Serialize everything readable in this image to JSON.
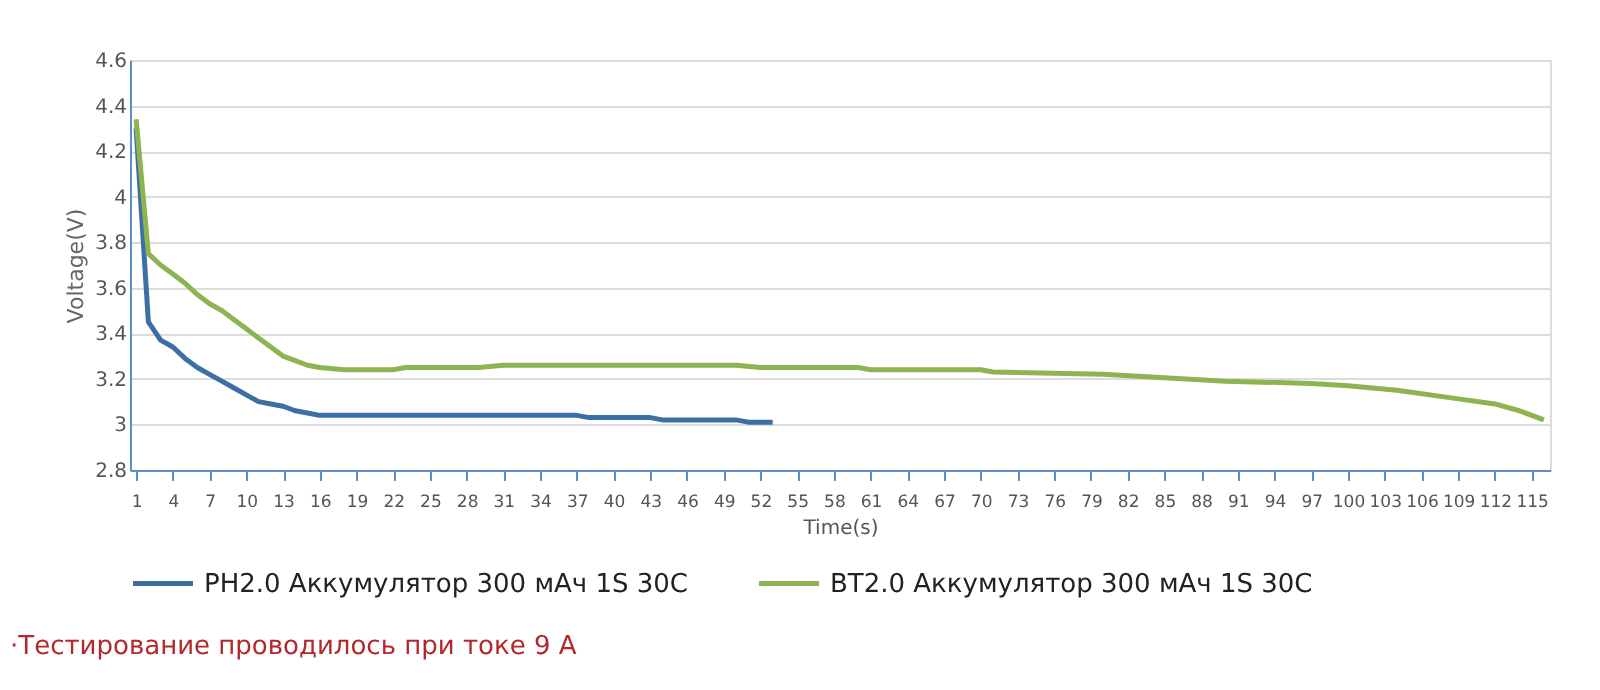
{
  "chart_data": {
    "type": "line",
    "xlabel": "Time(s)",
    "ylabel": "Voltage(V)",
    "xlim": [
      0.5,
      116.5
    ],
    "xticks": [
      1,
      4,
      7,
      10,
      13,
      16,
      19,
      22,
      25,
      28,
      31,
      34,
      37,
      40,
      43,
      46,
      49,
      52,
      55,
      58,
      61,
      64,
      67,
      70,
      73,
      76,
      79,
      82,
      85,
      88,
      91,
      94,
      97,
      100,
      103,
      106,
      109,
      112,
      115
    ],
    "ylim": [
      2.8,
      4.6
    ],
    "yticks": [
      2.8,
      3,
      3.2,
      3.4,
      3.6,
      3.8,
      4,
      4.2,
      4.4,
      4.6
    ],
    "grid": "y",
    "legend": "bottom",
    "marker": "none",
    "line_style": "solid",
    "annotations": [
      "·Тестирование проводилось при токе 9 A"
    ],
    "series": [
      {
        "name": "PH2.0 Аккумулятор 300 мАч 1S 30C",
        "color": "#3d6fa5",
        "x": [
          1,
          2,
          3,
          4,
          5,
          6,
          7,
          8,
          9,
          10,
          11,
          12,
          13,
          14,
          15,
          16,
          20,
          30,
          37,
          38,
          43,
          44,
          50,
          51,
          53
        ],
        "values": [
          4.3,
          3.45,
          3.37,
          3.34,
          3.29,
          3.25,
          3.22,
          3.19,
          3.16,
          3.13,
          3.1,
          3.09,
          3.08,
          3.06,
          3.05,
          3.04,
          3.04,
          3.04,
          3.04,
          3.03,
          3.03,
          3.02,
          3.02,
          3.01,
          3.01
        ]
      },
      {
        "name": "BT2.0 Аккумулятор 300 мАч 1S 30C",
        "color": "#8db450",
        "x": [
          1,
          2,
          3,
          4,
          5,
          6,
          7,
          8,
          9,
          10,
          11,
          12,
          13,
          14,
          15,
          16,
          18,
          22,
          23,
          28,
          29,
          31,
          50,
          52,
          60,
          61,
          70,
          71,
          80,
          90,
          97,
          100,
          104,
          108,
          112,
          114,
          116
        ],
        "values": [
          4.34,
          3.75,
          3.7,
          3.66,
          3.62,
          3.57,
          3.53,
          3.5,
          3.46,
          3.42,
          3.38,
          3.34,
          3.3,
          3.28,
          3.26,
          3.25,
          3.24,
          3.24,
          3.25,
          3.25,
          3.25,
          3.26,
          3.26,
          3.25,
          3.25,
          3.24,
          3.24,
          3.23,
          3.22,
          3.19,
          3.18,
          3.17,
          3.15,
          3.12,
          3.09,
          3.06,
          3.02
        ]
      }
    ]
  }
}
